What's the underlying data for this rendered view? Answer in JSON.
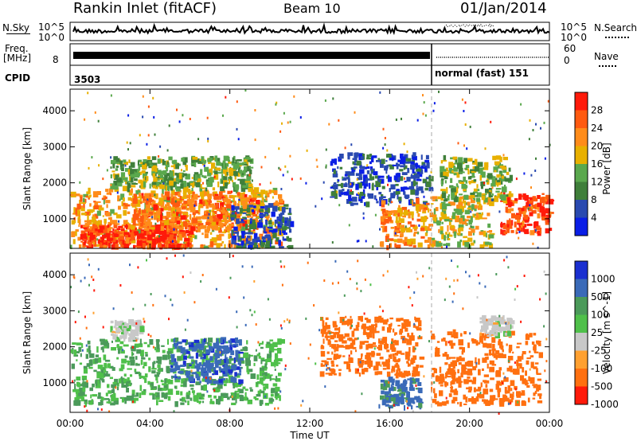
{
  "header": {
    "station_label": "Rankin Inlet (fitACF)",
    "beam_label": "Beam 10",
    "date_label": "01/Jan/2014"
  },
  "aux_panels": {
    "nsky_label": "N.Sky",
    "nsearch_label": "N.Search",
    "noise_tick_top": "10^5",
    "noise_tick_bottom": "10^0",
    "freq_label_line1": "Freq.",
    "freq_label_line2": "[MHz]",
    "freq_tick_top": "",
    "freq_tick_bottom": "8",
    "nave_label": "Nave",
    "nave_tick_top": "60",
    "nave_tick_bottom": "0",
    "cpid_label": "CPID",
    "cpid_left": "3503",
    "cpid_right": "normal (fast) 151"
  },
  "colorbars": {
    "power": {
      "title": "Power [dB]",
      "ticks": [
        "4",
        "8",
        "12",
        "16",
        "20",
        "24",
        "28"
      ],
      "colors": [
        "#0a1ee6",
        "#2a4ab0",
        "#3f7f3a",
        "#5aa84d",
        "#e8b000",
        "#ff8c1a",
        "#ff5a10",
        "#ff1a0a"
      ]
    },
    "velocity": {
      "title": "Velocity [m s^-1]",
      "ticks": [
        "1000",
        "500",
        "100",
        "25",
        "-25",
        "-100",
        "-500",
        "-1000"
      ],
      "colors": [
        "#1a2fd0",
        "#3a6ab8",
        "#4b9a5a",
        "#4fc04a",
        "#c8c8c8",
        "#ffa030",
        "#ff7010",
        "#ff1a0a"
      ]
    }
  },
  "chart_data": [
    {
      "type": "heatmap",
      "title": "Power",
      "xlabel": "Time UT",
      "ylabel": "Slant Range [km]",
      "x_ticks": [
        "00:00",
        "04:00",
        "08:00",
        "12:00",
        "16:00",
        "20:00",
        "00:00"
      ],
      "y_ticks": [
        1000,
        2000,
        3000,
        4000
      ],
      "xlim_hours": [
        0,
        24
      ],
      "ylim_km": [
        180,
        4600
      ],
      "regions": [
        {
          "t0": 0,
          "t1": 10.5,
          "r0": 200,
          "r1": 1800,
          "level": 20
        },
        {
          "t0": 0.5,
          "t1": 6,
          "r0": 200,
          "r1": 800,
          "level": 28
        },
        {
          "t0": 3,
          "t1": 9.5,
          "r0": 700,
          "r1": 1700,
          "level": 24
        },
        {
          "t0": 2,
          "t1": 9,
          "r0": 1800,
          "r1": 2700,
          "level": 14
        },
        {
          "t0": 8,
          "t1": 11,
          "r0": 200,
          "r1": 1400,
          "level": 6
        },
        {
          "t0": 13,
          "t1": 18,
          "r0": 1400,
          "r1": 2800,
          "level": 6
        },
        {
          "t0": 15.5,
          "t1": 18,
          "r0": 200,
          "r1": 1500,
          "level": 22
        },
        {
          "t0": 18,
          "t1": 21,
          "r0": 200,
          "r1": 1600,
          "level": 18
        },
        {
          "t0": 21.5,
          "t1": 24,
          "r0": 600,
          "r1": 1700,
          "level": 28
        },
        {
          "t0": 18.5,
          "t1": 22,
          "r0": 1500,
          "r1": 2700,
          "level": 14
        }
      ]
    },
    {
      "type": "heatmap",
      "title": "Velocity",
      "xlabel": "Time UT",
      "ylabel": "Slant Range [km]",
      "x_ticks": [
        "00:00",
        "04:00",
        "08:00",
        "12:00",
        "16:00",
        "20:00",
        "00:00"
      ],
      "y_ticks": [
        1000,
        2000,
        3000,
        4000
      ],
      "xlim_hours": [
        0,
        24
      ],
      "ylim_km": [
        180,
        4600
      ],
      "regions": [
        {
          "t0": 0,
          "t1": 10.5,
          "r0": 400,
          "r1": 2200,
          "velocity": 100
        },
        {
          "t0": 5,
          "t1": 8.5,
          "r0": 1000,
          "r1": 2200,
          "velocity": 800
        },
        {
          "t0": 2,
          "t1": 3.5,
          "r0": 2200,
          "r1": 2700,
          "velocity": 0
        },
        {
          "t0": 12.5,
          "t1": 17.5,
          "r0": 1200,
          "r1": 2800,
          "velocity": -300
        },
        {
          "t0": 15.5,
          "t1": 17.5,
          "r0": 300,
          "r1": 1100,
          "velocity": 600
        },
        {
          "t0": 18,
          "t1": 23.5,
          "r0": 400,
          "r1": 2400,
          "velocity": -200
        },
        {
          "t0": 20.5,
          "t1": 22,
          "r0": 2300,
          "r1": 2800,
          "velocity": 0
        }
      ]
    }
  ]
}
